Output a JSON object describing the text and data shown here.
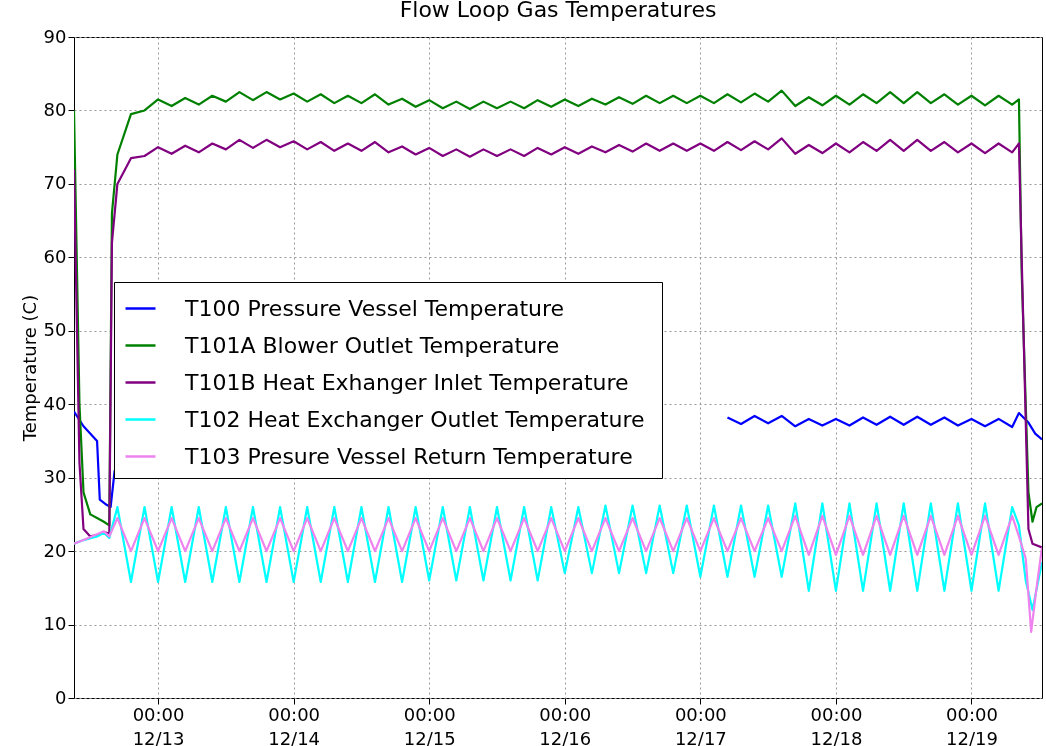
{
  "chart_data": {
    "type": "line",
    "title": "Flow Loop Gas Temperatures",
    "ylabel": "Temperature (C)",
    "xlim": [
      "--12-12T09:07",
      "--12-19T12:29"
    ],
    "xticks": [
      {
        "value": "--12-13T00:00",
        "label": "00:00\n12/13"
      },
      {
        "value": "--12-14T00:00",
        "label": "00:00\n12/14"
      },
      {
        "value": "--12-15T00:00",
        "label": "00:00\n12/15"
      },
      {
        "value": "--12-16T00:00",
        "label": "00:00\n12/16"
      },
      {
        "value": "--12-17T00:00",
        "label": "00:00\n12/17"
      },
      {
        "value": "--12-18T00:00",
        "label": "00:00\n12/18"
      },
      {
        "value": "--12-19T00:00",
        "label": "00:00\n12/19"
      }
    ],
    "ylim": [
      0,
      90
    ],
    "yticks": [
      0,
      10,
      20,
      30,
      40,
      50,
      60,
      70,
      80,
      90
    ],
    "grid": true,
    "legend": "left",
    "series": [
      {
        "name": "T100  Pressure Vessel Temperature",
        "color": "#0000ff",
        "x": [
          "--12-12T09:07",
          "--12-12T10:48",
          "--12-12T13:12",
          "--12-12T13:41",
          "--12-12T14:53",
          "--12-12T15:36",
          "--12-12T16:19",
          "--12-12T17:17",
          "--12-12T19:12",
          "--12-17T04:48",
          "--12-17T07:12",
          "--12-17T09:36",
          "--12-17T12:00",
          "--12-17T14:24",
          "--12-17T16:48",
          "--12-17T19:12",
          "--12-17T21:36",
          "--12-18T00:00",
          "--12-18T02:24",
          "--12-18T04:48",
          "--12-18T07:12",
          "--12-18T09:36",
          "--12-18T12:00",
          "--12-18T14:24",
          "--12-18T16:48",
          "--12-18T19:12",
          "--12-18T21:36",
          "--12-19T00:00",
          "--12-19T02:24",
          "--12-19T04:48",
          "--12-19T07:12",
          "--12-19T08:24",
          "--12-19T10:05",
          "--12-19T11:17",
          "--12-19T12:29"
        ],
        "values": [
          39,
          37,
          35,
          27,
          26.3,
          26,
          31,
          null,
          null,
          38.2,
          37.3,
          38.4,
          37.4,
          38.4,
          37,
          38,
          37.1,
          38,
          37.1,
          38.2,
          37.2,
          38.3,
          37.2,
          38.3,
          37.2,
          38.2,
          37.1,
          38,
          37,
          38,
          36.9,
          38.8,
          37.5,
          36,
          35.2
        ]
      },
      {
        "name": "T101A Blower Outlet Temperature",
        "color": "#008000",
        "x": [
          "--12-12T09:07",
          "--12-12T10:05",
          "--12-12T10:48",
          "--12-12T12:00",
          "--12-12T13:12",
          "--12-12T14:24",
          "--12-12T15:22",
          "--12-12T15:50",
          "--12-12T16:48",
          "--12-12T19:12",
          "--12-12T21:36",
          "--12-13T00:00",
          "--12-13T02:24",
          "--12-13T04:48",
          "--12-13T07:12",
          "--12-13T09:36",
          "--12-13T12:00",
          "--12-13T14:24",
          "--12-13T16:48",
          "--12-13T19:12",
          "--12-13T21:36",
          "--12-14T00:00",
          "--12-14T02:24",
          "--12-14T04:48",
          "--12-14T07:12",
          "--12-14T09:36",
          "--12-14T12:00",
          "--12-14T14:24",
          "--12-14T16:48",
          "--12-14T19:12",
          "--12-14T21:36",
          "--12-15T00:00",
          "--12-15T02:24",
          "--12-15T04:48",
          "--12-15T07:12",
          "--12-15T09:36",
          "--12-15T12:00",
          "--12-15T14:24",
          "--12-15T16:48",
          "--12-15T19:12",
          "--12-15T21:36",
          "--12-16T00:00",
          "--12-16T02:24",
          "--12-16T04:48",
          "--12-16T07:12",
          "--12-16T09:36",
          "--12-16T12:00",
          "--12-16T14:24",
          "--12-16T16:48",
          "--12-16T19:12",
          "--12-16T21:36",
          "--12-17T00:00",
          "--12-17T02:24",
          "--12-17T04:48",
          "--12-17T07:12",
          "--12-17T09:36",
          "--12-17T12:00",
          "--12-17T14:24",
          "--12-17T16:48",
          "--12-17T19:12",
          "--12-17T21:36",
          "--12-18T00:00",
          "--12-18T02:24",
          "--12-18T04:48",
          "--12-18T07:12",
          "--12-18T09:36",
          "--12-18T12:00",
          "--12-18T14:24",
          "--12-18T16:48",
          "--12-18T19:12",
          "--12-18T21:36",
          "--12-19T00:00",
          "--12-19T02:24",
          "--12-19T04:48",
          "--12-19T07:12",
          "--12-19T08:24",
          "--12-19T08:53",
          "--12-19T10:05",
          "--12-19T10:48",
          "--12-19T11:31",
          "--12-19T12:29"
        ],
        "values": [
          80,
          40,
          28,
          25,
          24.5,
          24,
          23.5,
          66,
          74,
          79.5,
          80,
          81.5,
          80.6,
          81.7,
          80.8,
          82,
          81.2,
          82.5,
          81.4,
          82.5,
          81.5,
          82.3,
          81.2,
          82.2,
          81,
          82,
          81,
          82.2,
          80.8,
          81.6,
          80.5,
          81.4,
          80.3,
          81.2,
          80.2,
          81.2,
          80.3,
          81.2,
          80.3,
          81.4,
          80.5,
          81.5,
          80.6,
          81.6,
          80.8,
          81.8,
          80.9,
          82,
          81,
          82,
          81,
          82,
          81,
          82.2,
          81.1,
          82.3,
          81.2,
          82.7,
          80.6,
          81.8,
          80.7,
          82,
          80.8,
          82.2,
          81,
          82.5,
          81,
          82.5,
          81,
          82.2,
          80.8,
          82,
          80.7,
          82,
          80.8,
          81.5,
          58,
          28,
          24,
          26,
          26.5
        ]
      },
      {
        "name": "T101B Heat Exhanger Inlet Temperature",
        "color": "#800080",
        "x": [
          "--12-12T09:07",
          "--12-12T10:05",
          "--12-12T10:48",
          "--12-12T12:00",
          "--12-12T13:12",
          "--12-12T14:24",
          "--12-12T15:22",
          "--12-12T15:50",
          "--12-12T16:48",
          "--12-12T19:12",
          "--12-12T21:36",
          "--12-13T00:00",
          "--12-13T02:24",
          "--12-13T04:48",
          "--12-13T07:12",
          "--12-13T09:36",
          "--12-13T12:00",
          "--12-13T14:24",
          "--12-13T16:48",
          "--12-13T19:12",
          "--12-13T21:36",
          "--12-14T00:00",
          "--12-14T02:24",
          "--12-14T04:48",
          "--12-14T07:12",
          "--12-14T09:36",
          "--12-14T12:00",
          "--12-14T14:24",
          "--12-14T16:48",
          "--12-14T19:12",
          "--12-14T21:36",
          "--12-15T00:00",
          "--12-15T02:24",
          "--12-15T04:48",
          "--12-15T07:12",
          "--12-15T09:36",
          "--12-15T12:00",
          "--12-15T14:24",
          "--12-15T16:48",
          "--12-15T19:12",
          "--12-15T21:36",
          "--12-16T00:00",
          "--12-16T02:24",
          "--12-16T04:48",
          "--12-16T07:12",
          "--12-16T09:36",
          "--12-16T12:00",
          "--12-16T14:24",
          "--12-16T16:48",
          "--12-16T19:12",
          "--12-16T21:36",
          "--12-17T00:00",
          "--12-17T02:24",
          "--12-17T04:48",
          "--12-17T07:12",
          "--12-17T09:36",
          "--12-17T12:00",
          "--12-17T14:24",
          "--12-17T16:48",
          "--12-17T19:12",
          "--12-17T21:36",
          "--12-18T00:00",
          "--12-18T02:24",
          "--12-18T04:48",
          "--12-18T07:12",
          "--12-18T09:36",
          "--12-18T12:00",
          "--12-18T14:24",
          "--12-18T16:48",
          "--12-18T19:12",
          "--12-18T21:36",
          "--12-19T00:00",
          "--12-19T02:24",
          "--12-19T04:48",
          "--12-19T07:12",
          "--12-19T08:24",
          "--12-19T08:53",
          "--12-19T10:05",
          "--12-19T10:48",
          "--12-19T12:29"
        ],
        "values": [
          72,
          32,
          23,
          22,
          22.2,
          22.6,
          22.4,
          62,
          70,
          73.5,
          73.8,
          75,
          74.1,
          75.2,
          74.3,
          75.5,
          74.7,
          76,
          74.9,
          76,
          75,
          75.8,
          74.7,
          75.7,
          74.5,
          75.5,
          74.5,
          75.7,
          74.3,
          75.1,
          74,
          74.9,
          73.8,
          74.7,
          73.7,
          74.7,
          73.8,
          74.7,
          73.8,
          74.9,
          74,
          75,
          74.1,
          75.1,
          74.3,
          75.3,
          74.4,
          75.5,
          74.5,
          75.5,
          74.5,
          75.5,
          74.5,
          75.7,
          74.6,
          75.8,
          74.7,
          76.2,
          74.1,
          75.3,
          74.2,
          75.5,
          74.3,
          75.7,
          74.5,
          76,
          74.5,
          76,
          74.5,
          75.7,
          74.3,
          75.5,
          74.2,
          75.5,
          74.3,
          75.5,
          60,
          23,
          21,
          20.5
        ]
      },
      {
        "name": "T102  Heat Exchanger Outlet Temperature",
        "color": "#00ffff",
        "x": [
          "--12-12T09:07",
          "--12-12T10:48",
          "--12-12T13:12",
          "--12-12T14:24",
          "--12-12T15:22",
          "--12-12T16:48",
          "--12-12T19:12",
          "--12-12T21:36",
          "--12-13T00:00",
          "--12-13T02:24",
          "--12-13T04:48",
          "--12-13T07:12",
          "--12-13T09:36",
          "--12-13T12:00",
          "--12-13T14:24",
          "--12-13T16:48",
          "--12-13T19:12",
          "--12-13T21:36",
          "--12-14T00:00",
          "--12-14T02:24",
          "--12-14T04:48",
          "--12-14T07:12",
          "--12-14T09:36",
          "--12-14T12:00",
          "--12-14T14:24",
          "--12-14T16:48",
          "--12-14T19:12",
          "--12-14T21:36",
          "--12-15T00:00",
          "--12-15T02:24",
          "--12-15T04:48",
          "--12-15T07:12",
          "--12-15T09:36",
          "--12-15T12:00",
          "--12-15T14:24",
          "--12-15T16:48",
          "--12-15T19:12",
          "--12-15T21:36",
          "--12-16T00:00",
          "--12-16T02:24",
          "--12-16T04:48",
          "--12-16T07:12",
          "--12-16T09:36",
          "--12-16T12:00",
          "--12-16T14:24",
          "--12-16T16:48",
          "--12-16T19:12",
          "--12-16T21:36",
          "--12-17T00:00",
          "--12-17T02:24",
          "--12-17T04:48",
          "--12-17T07:12",
          "--12-17T09:36",
          "--12-17T12:00",
          "--12-17T14:24",
          "--12-17T16:48",
          "--12-17T19:12",
          "--12-17T21:36",
          "--12-18T00:00",
          "--12-18T02:24",
          "--12-18T04:48",
          "--12-18T07:12",
          "--12-18T09:36",
          "--12-18T12:00",
          "--12-18T14:24",
          "--12-18T16:48",
          "--12-18T19:12",
          "--12-18T21:36",
          "--12-19T00:00",
          "--12-19T02:24",
          "--12-19T04:48",
          "--12-19T07:12",
          "--12-19T08:24",
          "--12-19T09:36",
          "--12-19T10:48",
          "--12-19T12:29"
        ],
        "values": [
          21,
          21.5,
          22,
          22.5,
          21.8,
          26,
          15.8,
          26,
          15.8,
          26,
          15.8,
          26,
          15.8,
          26,
          15.8,
          26,
          15.8,
          26,
          15.8,
          26,
          15.8,
          26,
          15.8,
          26,
          15.8,
          26,
          15.8,
          26,
          16,
          26,
          16,
          26,
          16,
          26,
          16,
          26,
          16,
          26,
          17,
          26,
          17,
          26.2,
          17,
          26.2,
          17,
          26.2,
          17,
          26.2,
          16.5,
          26.2,
          16.5,
          26.2,
          16.5,
          26.2,
          16.5,
          26.5,
          14.6,
          26.5,
          14.6,
          26.5,
          14.6,
          26.5,
          14.6,
          26.5,
          14.6,
          26.5,
          14.6,
          26.5,
          14.6,
          26.5,
          14.6,
          26,
          23.5,
          16,
          12,
          18.5
        ]
      },
      {
        "name": "T103  Presure Vessel Return Temperature",
        "color": "#ee82ee",
        "x": [
          "--12-12T09:07",
          "--12-12T10:48",
          "--12-12T13:12",
          "--12-12T14:24",
          "--12-12T15:22",
          "--12-12T16:48",
          "--12-12T19:12",
          "--12-12T21:36",
          "--12-13T00:00",
          "--12-13T02:24",
          "--12-13T04:48",
          "--12-13T07:12",
          "--12-13T09:36",
          "--12-13T12:00",
          "--12-13T14:24",
          "--12-13T16:48",
          "--12-13T19:12",
          "--12-13T21:36",
          "--12-14T00:00",
          "--12-14T02:24",
          "--12-14T04:48",
          "--12-14T07:12",
          "--12-14T09:36",
          "--12-14T12:00",
          "--12-14T14:24",
          "--12-14T16:48",
          "--12-14T19:12",
          "--12-14T21:36",
          "--12-15T00:00",
          "--12-15T02:24",
          "--12-15T04:48",
          "--12-15T07:12",
          "--12-15T09:36",
          "--12-15T12:00",
          "--12-15T14:24",
          "--12-15T16:48",
          "--12-15T19:12",
          "--12-15T21:36",
          "--12-16T00:00",
          "--12-16T02:24",
          "--12-16T04:48",
          "--12-16T07:12",
          "--12-16T09:36",
          "--12-16T12:00",
          "--12-16T14:24",
          "--12-16T16:48",
          "--12-16T19:12",
          "--12-16T21:36",
          "--12-17T00:00",
          "--12-17T02:24",
          "--12-17T04:48",
          "--12-17T07:12",
          "--12-17T09:36",
          "--12-17T12:00",
          "--12-17T14:24",
          "--12-17T16:48",
          "--12-17T19:12",
          "--12-17T21:36",
          "--12-18T00:00",
          "--12-18T02:24",
          "--12-18T04:48",
          "--12-18T07:12",
          "--12-18T09:36",
          "--12-18T12:00",
          "--12-18T14:24",
          "--12-18T16:48",
          "--12-18T19:12",
          "--12-18T21:36",
          "--12-19T00:00",
          "--12-19T02:24",
          "--12-19T04:48",
          "--12-19T07:12",
          "--12-19T08:24",
          "--12-19T09:36",
          "--12-19T10:34",
          "--12-19T11:31",
          "--12-19T12:29"
        ],
        "values": [
          21,
          21.5,
          22.3,
          22.7,
          22,
          24.5,
          20,
          24.5,
          20,
          24.5,
          20,
          24.5,
          20,
          24.5,
          20,
          24.5,
          20,
          24.5,
          20,
          24.5,
          20,
          24.5,
          20,
          24.5,
          20,
          24.5,
          20,
          24.5,
          20,
          24.5,
          20,
          24.5,
          20,
          24.5,
          20,
          24.5,
          20,
          24.5,
          20,
          24.5,
          20,
          24.5,
          20,
          24.5,
          20,
          24.5,
          20,
          24.5,
          20,
          24.5,
          20,
          24.5,
          20,
          24.5,
          20,
          24.8,
          19.5,
          24.8,
          19.5,
          24.8,
          19.5,
          24.8,
          19.5,
          24.8,
          19.5,
          24.8,
          19.5,
          24.8,
          19.5,
          24.8,
          19.5,
          24.8,
          22,
          19,
          9,
          15,
          20.5
        ]
      }
    ]
  }
}
